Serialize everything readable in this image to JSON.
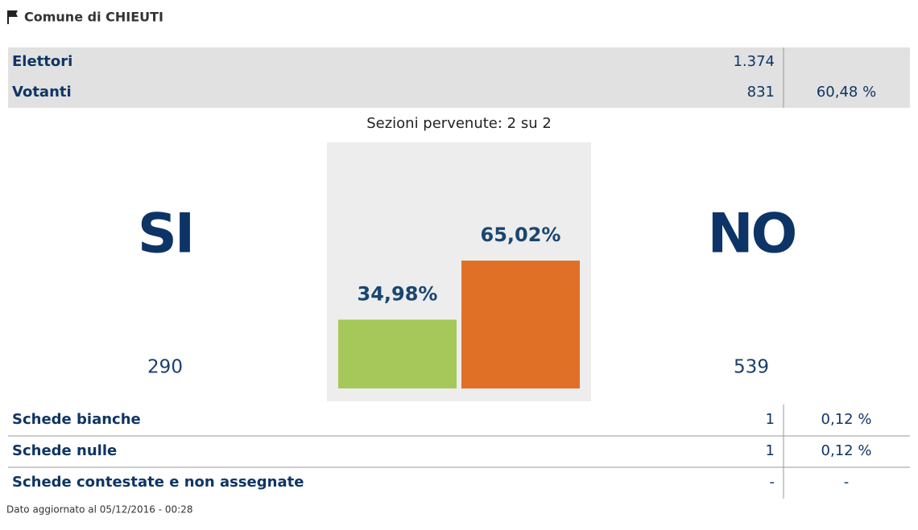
{
  "header": {
    "title": "Comune di CHIEUTI"
  },
  "summary": {
    "rows": [
      {
        "label": "Elettori",
        "value": "1.374"
      },
      {
        "label": "Votanti",
        "value": "831",
        "percent": "60,48 %"
      }
    ]
  },
  "sections": "Sezioni pervenute: 2 su 2",
  "result": {
    "type": "bar",
    "categories": [
      "SI",
      "NO"
    ],
    "counts": [
      290,
      539
    ],
    "values": [
      34.98,
      65.02
    ],
    "value_labels": [
      "34,98%",
      "65,02%"
    ],
    "colors": [
      "#a6c85a",
      "#e07026"
    ]
  },
  "details": {
    "rows": [
      {
        "label": "Schede bianche",
        "value": "1",
        "percent": "0,12 %"
      },
      {
        "label": "Schede nulle",
        "value": "1",
        "percent": "0,12 %"
      },
      {
        "label": "Schede contestate e non assegnate",
        "value": "-",
        "percent": "-"
      }
    ]
  },
  "footer": "Dato aggiornato al 05/12/2016 - 00:28"
}
